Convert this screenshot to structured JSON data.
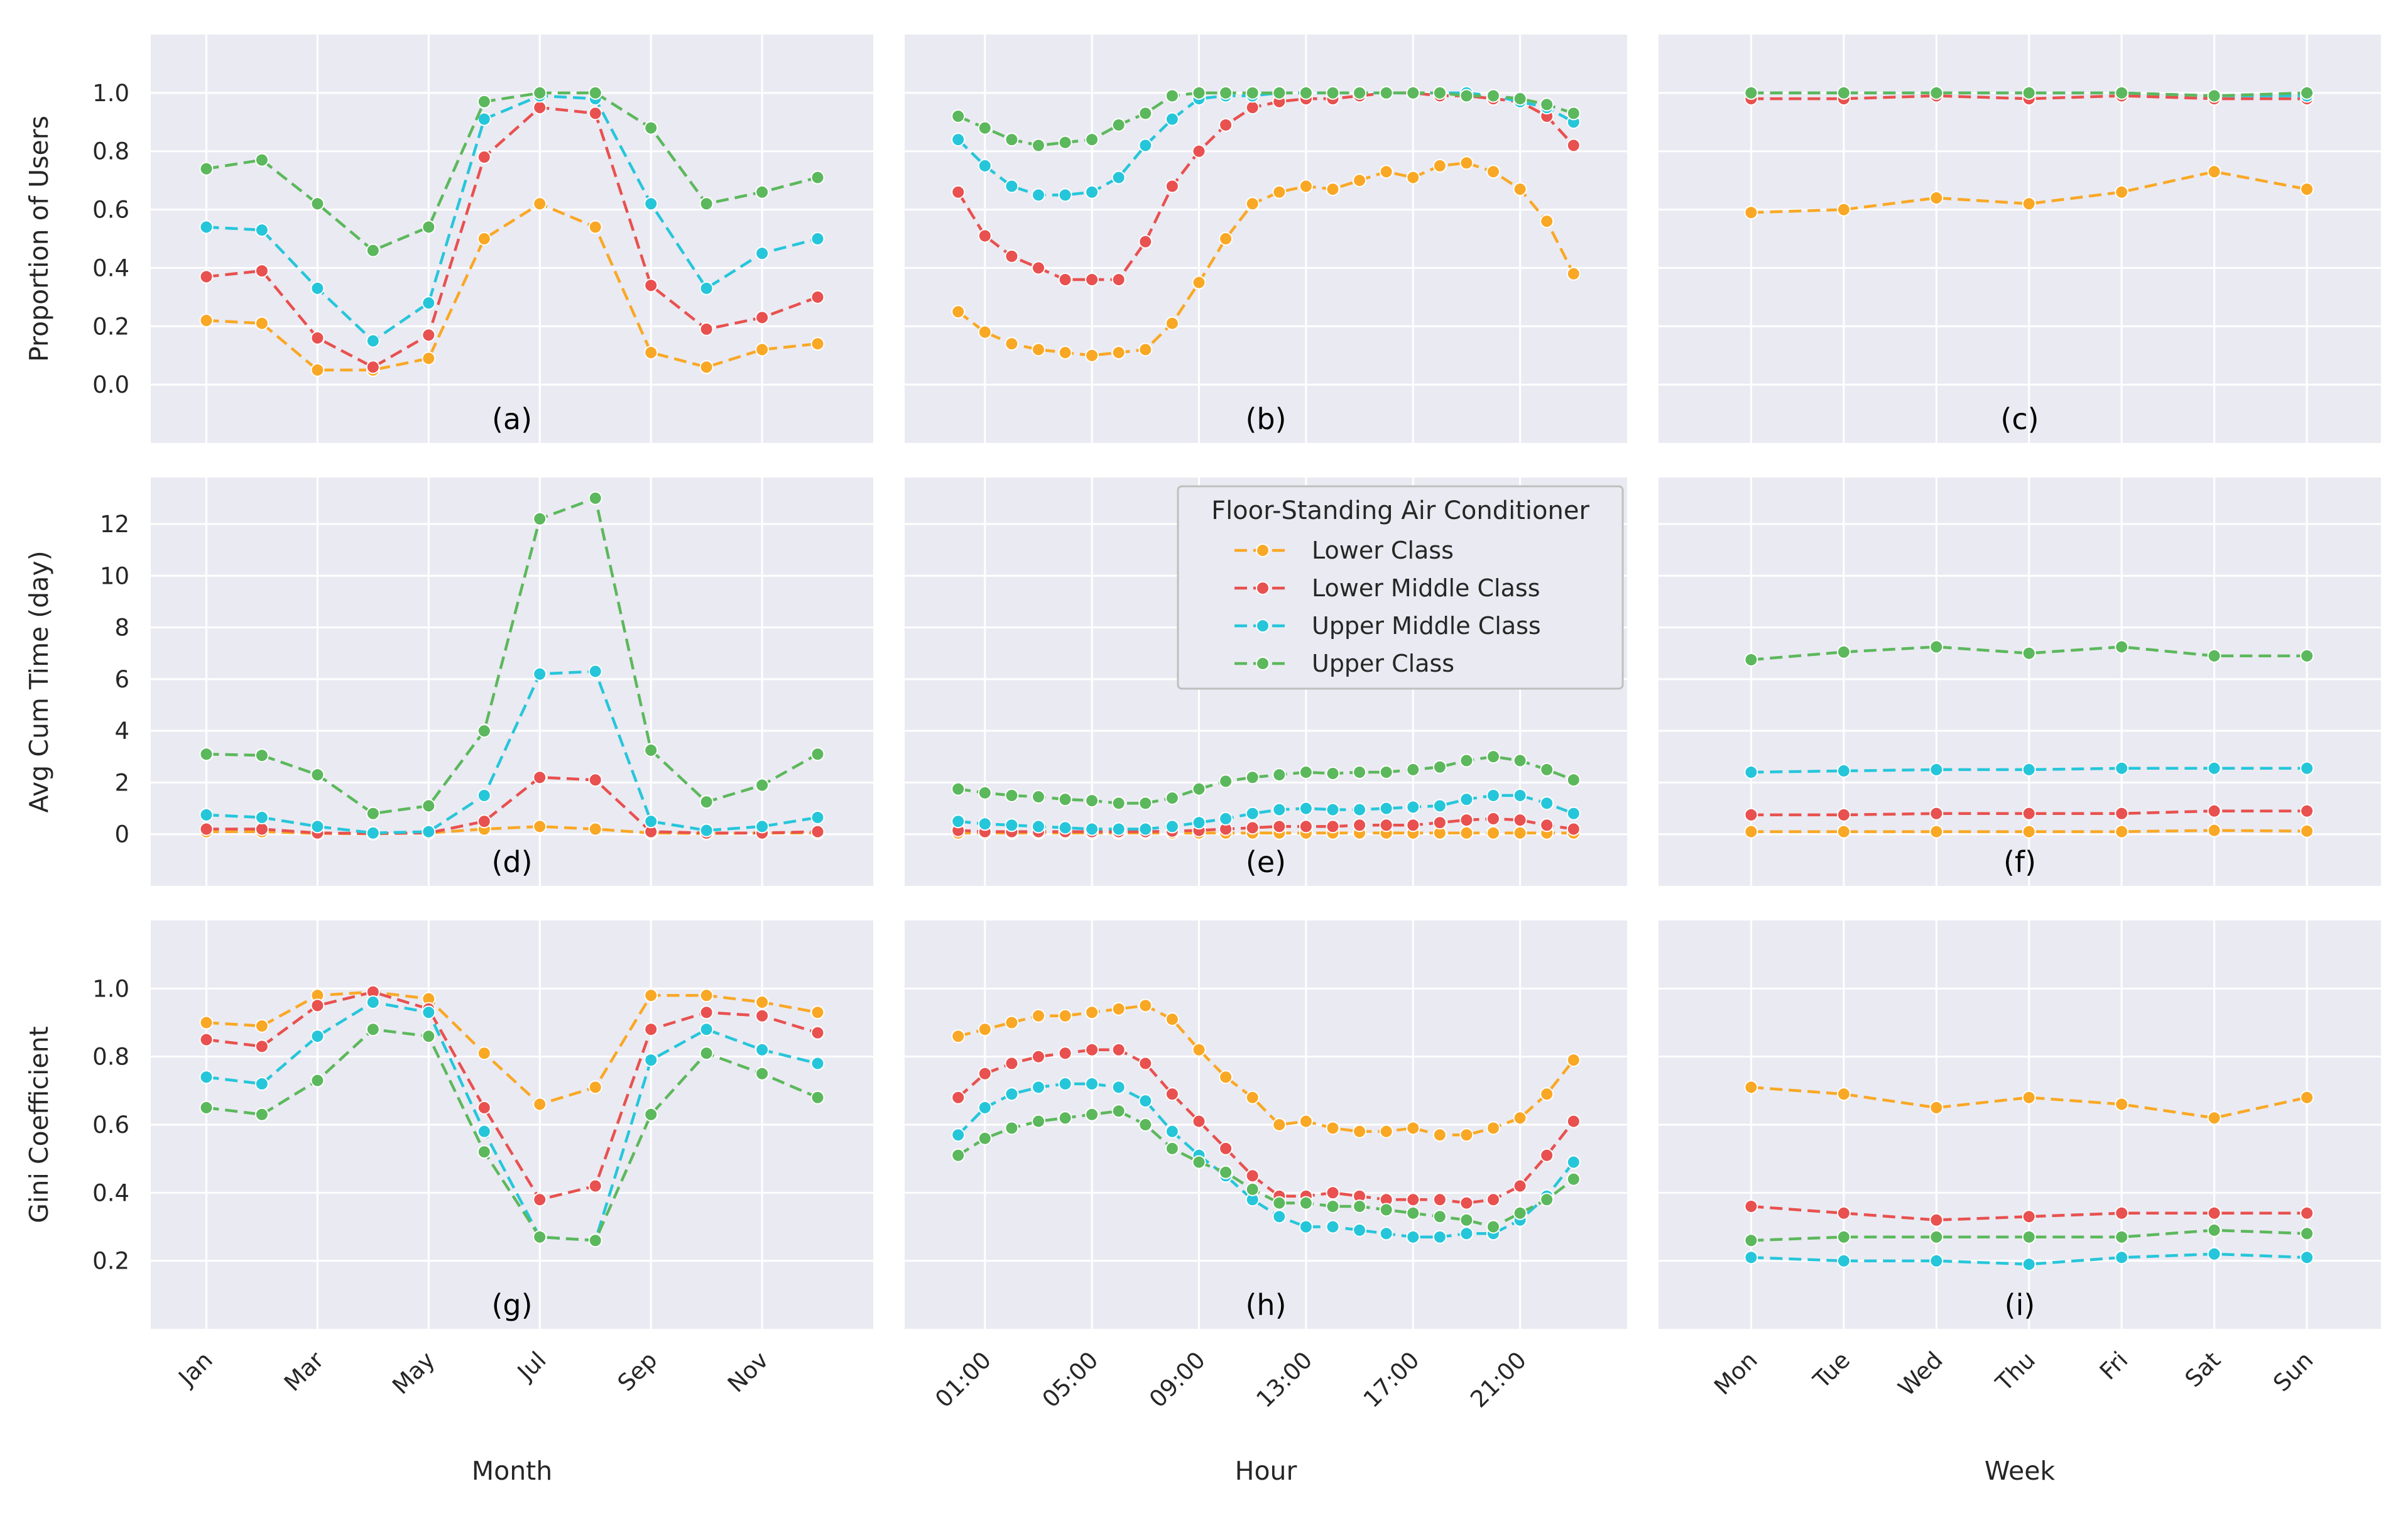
{
  "colors": {
    "panel_background": "#eaeaf2",
    "grid": "#ffffff",
    "lower_class": "#f9a825",
    "lower_middle_class": "#e8514f",
    "upper_middle_class": "#26c6da",
    "upper_class": "#5cb85c"
  },
  "legend": {
    "title": "Floor-Standing Air Conditioner",
    "entries": [
      "Lower Class",
      "Lower Middle Class",
      "Upper Middle Class",
      "Upper Class"
    ],
    "location": "panel (e), top-right"
  },
  "chart_data": {
    "type": "line",
    "series_names": [
      "Lower Class",
      "Lower Middle Class",
      "Upper Middle Class",
      "Upper Class"
    ],
    "rows": [
      {
        "ylabel": "Proportion of Users",
        "ylim": [
          -0.2,
          1.2
        ],
        "yticks": [
          0.0,
          0.2,
          0.4,
          0.6,
          0.8,
          1.0
        ],
        "tick_decimals": 1
      },
      {
        "ylabel": "Avg Cum Time (day)",
        "ylim": [
          -2,
          13.8
        ],
        "yticks": [
          0,
          2,
          4,
          6,
          8,
          10,
          12
        ],
        "tick_decimals": 0
      },
      {
        "ylabel": "Gini Coefficient",
        "ylim": [
          0.0,
          1.2
        ],
        "yticks": [
          0.2,
          0.4,
          0.6,
          0.8,
          1.0
        ],
        "tick_decimals": 1
      }
    ],
    "columns": [
      {
        "xlabel": "Month",
        "xlim": [
          0,
          13
        ],
        "xticks": [
          1,
          3,
          5,
          7,
          9,
          11
        ],
        "tick_labels": [
          "Jan",
          "Mar",
          "May",
          "Jul",
          "Sep",
          "Nov"
        ],
        "x": [
          1,
          2,
          3,
          4,
          5,
          6,
          7,
          8,
          9,
          10,
          11,
          12
        ]
      },
      {
        "xlabel": "Hour",
        "xlim": [
          -2,
          25
        ],
        "xticks": [
          1,
          5,
          9,
          13,
          17,
          21
        ],
        "tick_labels": [
          "01:00",
          "05:00",
          "09:00",
          "13:00",
          "17:00",
          "21:00"
        ],
        "x": [
          0,
          1,
          2,
          3,
          4,
          5,
          6,
          7,
          8,
          9,
          10,
          11,
          12,
          13,
          14,
          15,
          16,
          17,
          18,
          19,
          20,
          21,
          22,
          23
        ]
      },
      {
        "xlabel": "Week",
        "xlim": [
          0,
          7.8
        ],
        "xticks": [
          1,
          2,
          3,
          4,
          5,
          6,
          7
        ],
        "tick_labels": [
          "Mon",
          "Tue",
          "Wed",
          "Thu",
          "Fri",
          "Sat",
          "Sun"
        ],
        "x": [
          1,
          2,
          3,
          4,
          5,
          6,
          7
        ]
      }
    ],
    "panels": [
      {
        "label": "(a)",
        "row": 0,
        "col": 0,
        "series": [
          [
            0.22,
            0.21,
            0.05,
            0.05,
            0.09,
            0.5,
            0.62,
            0.54,
            0.11,
            0.06,
            0.12,
            0.14
          ],
          [
            0.37,
            0.39,
            0.16,
            0.06,
            0.17,
            0.78,
            0.95,
            0.93,
            0.34,
            0.19,
            0.23,
            0.3
          ],
          [
            0.54,
            0.53,
            0.33,
            0.15,
            0.28,
            0.91,
            0.99,
            0.98,
            0.62,
            0.33,
            0.45,
            0.5
          ],
          [
            0.74,
            0.77,
            0.62,
            0.46,
            0.54,
            0.97,
            1.0,
            1.0,
            0.88,
            0.62,
            0.66,
            0.71
          ]
        ]
      },
      {
        "label": "(b)",
        "row": 0,
        "col": 1,
        "series": [
          [
            0.25,
            0.18,
            0.14,
            0.12,
            0.11,
            0.1,
            0.11,
            0.12,
            0.21,
            0.35,
            0.5,
            0.62,
            0.66,
            0.68,
            0.67,
            0.7,
            0.73,
            0.71,
            0.75,
            0.76,
            0.73,
            0.67,
            0.56,
            0.38
          ],
          [
            0.66,
            0.51,
            0.44,
            0.4,
            0.36,
            0.36,
            0.36,
            0.49,
            0.68,
            0.8,
            0.89,
            0.95,
            0.97,
            0.98,
            0.98,
            0.99,
            1.0,
            1.0,
            0.99,
            0.99,
            0.98,
            0.97,
            0.92,
            0.82
          ],
          [
            0.84,
            0.75,
            0.68,
            0.65,
            0.65,
            0.66,
            0.71,
            0.82,
            0.91,
            0.98,
            0.99,
            0.99,
            1.0,
            1.0,
            1.0,
            1.0,
            1.0,
            1.0,
            1.0,
            1.0,
            0.99,
            0.97,
            0.95,
            0.9
          ],
          [
            0.92,
            0.88,
            0.84,
            0.82,
            0.83,
            0.84,
            0.89,
            0.93,
            0.99,
            1.0,
            1.0,
            1.0,
            1.0,
            1.0,
            1.0,
            1.0,
            1.0,
            1.0,
            1.0,
            0.99,
            0.99,
            0.98,
            0.96,
            0.93
          ]
        ]
      },
      {
        "label": "(c)",
        "row": 0,
        "col": 2,
        "series": [
          [
            0.59,
            0.6,
            0.64,
            0.62,
            0.66,
            0.73,
            0.67
          ],
          [
            0.98,
            0.98,
            0.99,
            0.98,
            0.99,
            0.98,
            0.98
          ],
          [
            1.0,
            1.0,
            1.0,
            1.0,
            1.0,
            0.99,
            0.99
          ],
          [
            1.0,
            1.0,
            1.0,
            1.0,
            1.0,
            0.99,
            1.0
          ]
        ]
      },
      {
        "label": "(d)",
        "row": 1,
        "col": 0,
        "series": [
          [
            0.1,
            0.1,
            0.03,
            0.02,
            0.05,
            0.2,
            0.3,
            0.2,
            0.05,
            0.03,
            0.05,
            0.05
          ],
          [
            0.2,
            0.2,
            0.05,
            0.03,
            0.05,
            0.5,
            2.2,
            2.1,
            0.1,
            0.05,
            0.05,
            0.1
          ],
          [
            0.75,
            0.65,
            0.3,
            0.05,
            0.1,
            1.5,
            6.2,
            6.3,
            0.5,
            0.15,
            0.3,
            0.65
          ],
          [
            3.1,
            3.05,
            2.3,
            0.8,
            1.1,
            4.0,
            12.2,
            13.0,
            3.25,
            1.25,
            1.9,
            3.1
          ]
        ]
      },
      {
        "label": "(e)",
        "row": 1,
        "col": 1,
        "series": [
          [
            0.05,
            0.05,
            0.05,
            0.05,
            0.05,
            0.05,
            0.05,
            0.05,
            0.05,
            0.05,
            0.05,
            0.05,
            0.05,
            0.05,
            0.05,
            0.05,
            0.05,
            0.05,
            0.05,
            0.05,
            0.05,
            0.05,
            0.05,
            0.05
          ],
          [
            0.15,
            0.1,
            0.1,
            0.1,
            0.1,
            0.1,
            0.1,
            0.1,
            0.12,
            0.15,
            0.2,
            0.25,
            0.3,
            0.3,
            0.3,
            0.35,
            0.35,
            0.35,
            0.45,
            0.55,
            0.6,
            0.55,
            0.35,
            0.2
          ],
          [
            0.5,
            0.4,
            0.35,
            0.3,
            0.25,
            0.2,
            0.2,
            0.2,
            0.3,
            0.45,
            0.6,
            0.8,
            0.95,
            1.0,
            0.95,
            0.95,
            1.0,
            1.05,
            1.1,
            1.35,
            1.5,
            1.5,
            1.2,
            0.8
          ],
          [
            1.75,
            1.6,
            1.5,
            1.45,
            1.35,
            1.3,
            1.2,
            1.2,
            1.4,
            1.75,
            2.05,
            2.2,
            2.3,
            2.4,
            2.35,
            2.4,
            2.4,
            2.5,
            2.6,
            2.85,
            3.0,
            2.85,
            2.5,
            2.1
          ]
        ]
      },
      {
        "label": "(f)",
        "row": 1,
        "col": 2,
        "series": [
          [
            0.1,
            0.1,
            0.1,
            0.1,
            0.1,
            0.15,
            0.12
          ],
          [
            0.75,
            0.75,
            0.8,
            0.8,
            0.8,
            0.9,
            0.9
          ],
          [
            2.4,
            2.45,
            2.5,
            2.5,
            2.55,
            2.55,
            2.55
          ],
          [
            6.75,
            7.05,
            7.25,
            7.0,
            7.25,
            6.9,
            6.9
          ]
        ]
      },
      {
        "label": "(g)",
        "row": 2,
        "col": 0,
        "series": [
          [
            0.9,
            0.89,
            0.98,
            0.99,
            0.97,
            0.81,
            0.66,
            0.71,
            0.98,
            0.98,
            0.96,
            0.93
          ],
          [
            0.85,
            0.83,
            0.95,
            0.99,
            0.94,
            0.65,
            0.38,
            0.42,
            0.88,
            0.93,
            0.92,
            0.87
          ],
          [
            0.74,
            0.72,
            0.86,
            0.96,
            0.93,
            0.58,
            0.27,
            0.26,
            0.79,
            0.88,
            0.82,
            0.78
          ],
          [
            0.65,
            0.63,
            0.73,
            0.88,
            0.86,
            0.52,
            0.27,
            0.26,
            0.63,
            0.81,
            0.75,
            0.68
          ]
        ]
      },
      {
        "label": "(h)",
        "row": 2,
        "col": 1,
        "series": [
          [
            0.86,
            0.88,
            0.9,
            0.92,
            0.92,
            0.93,
            0.94,
            0.95,
            0.91,
            0.82,
            0.74,
            0.68,
            0.6,
            0.61,
            0.59,
            0.58,
            0.58,
            0.59,
            0.57,
            0.57,
            0.59,
            0.62,
            0.69,
            0.79
          ],
          [
            0.68,
            0.75,
            0.78,
            0.8,
            0.81,
            0.82,
            0.82,
            0.78,
            0.69,
            0.61,
            0.53,
            0.45,
            0.39,
            0.39,
            0.4,
            0.39,
            0.38,
            0.38,
            0.38,
            0.37,
            0.38,
            0.42,
            0.51,
            0.61
          ],
          [
            0.57,
            0.65,
            0.69,
            0.71,
            0.72,
            0.72,
            0.71,
            0.67,
            0.58,
            0.51,
            0.45,
            0.38,
            0.33,
            0.3,
            0.3,
            0.29,
            0.28,
            0.27,
            0.27,
            0.28,
            0.28,
            0.32,
            0.39,
            0.49
          ],
          [
            0.51,
            0.56,
            0.59,
            0.61,
            0.62,
            0.63,
            0.64,
            0.6,
            0.53,
            0.49,
            0.46,
            0.41,
            0.37,
            0.37,
            0.36,
            0.36,
            0.35,
            0.34,
            0.33,
            0.32,
            0.3,
            0.34,
            0.38,
            0.44
          ]
        ]
      },
      {
        "label": "(i)",
        "row": 2,
        "col": 2,
        "series": [
          [
            0.71,
            0.69,
            0.65,
            0.68,
            0.66,
            0.62,
            0.68
          ],
          [
            0.36,
            0.34,
            0.32,
            0.33,
            0.34,
            0.34,
            0.34
          ],
          [
            0.21,
            0.2,
            0.2,
            0.19,
            0.21,
            0.22,
            0.21
          ],
          [
            0.26,
            0.27,
            0.27,
            0.27,
            0.27,
            0.29,
            0.28
          ]
        ]
      }
    ]
  }
}
